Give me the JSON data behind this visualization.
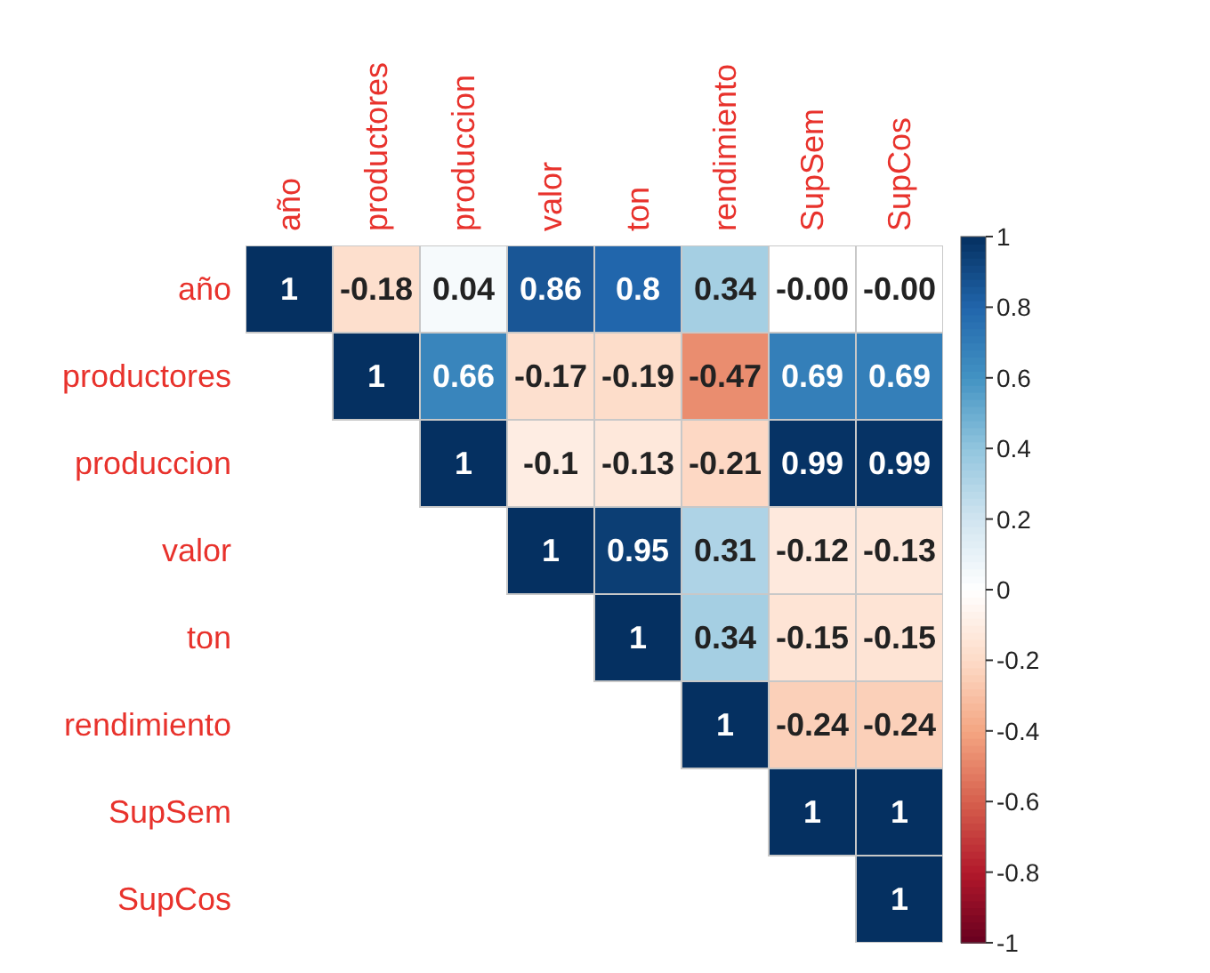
{
  "chart_data": {
    "type": "heatmap",
    "categories": [
      "año",
      "productores",
      "produccion",
      "valor",
      "ton",
      "rendimiento",
      "SupSem",
      "SupCos"
    ],
    "y_categories": [
      "año",
      "productores",
      "produccion",
      "valor",
      "ton",
      "rendimiento",
      "SupSem",
      "SupCos"
    ],
    "cells": [
      [
        1,
        -0.18,
        0.04,
        0.86,
        0.8,
        0.34,
        0,
        0
      ],
      [
        null,
        1,
        0.66,
        -0.17,
        -0.19,
        -0.47,
        0.69,
        0.69
      ],
      [
        null,
        null,
        1,
        -0.1,
        -0.13,
        -0.21,
        0.99,
        0.99
      ],
      [
        null,
        null,
        null,
        1,
        0.95,
        0.31,
        -0.12,
        -0.13
      ],
      [
        null,
        null,
        null,
        null,
        1,
        0.34,
        -0.15,
        -0.15
      ],
      [
        null,
        null,
        null,
        null,
        null,
        1,
        -0.24,
        -0.24
      ],
      [
        null,
        null,
        null,
        null,
        null,
        null,
        1,
        1
      ],
      [
        null,
        null,
        null,
        null,
        null,
        null,
        null,
        1
      ]
    ],
    "cell_labels": [
      [
        "1",
        "-0.18",
        "0.04",
        "0.86",
        "0.8",
        "0.34",
        "-0.00",
        "-0.00"
      ],
      [
        null,
        "1",
        "0.66",
        "-0.17",
        "-0.19",
        "-0.47",
        "0.69",
        "0.69"
      ],
      [
        null,
        null,
        "1",
        "-0.1",
        "-0.13",
        "-0.21",
        "0.99",
        "0.99"
      ],
      [
        null,
        null,
        null,
        "1",
        "0.95",
        "0.31",
        "-0.12",
        "-0.13"
      ],
      [
        null,
        null,
        null,
        null,
        "1",
        "0.34",
        "-0.15",
        "-0.15"
      ],
      [
        null,
        null,
        null,
        null,
        null,
        "1",
        "-0.24",
        "-0.24"
      ],
      [
        null,
        null,
        null,
        null,
        null,
        null,
        "1",
        "1"
      ],
      [
        null,
        null,
        null,
        null,
        null,
        null,
        null,
        "1"
      ]
    ],
    "clim": [
      -1,
      1
    ],
    "cticks": [
      {
        "value": -1,
        "label": "-1"
      },
      {
        "value": -0.8,
        "label": "-0.8"
      },
      {
        "value": -0.6,
        "label": "-0.6"
      },
      {
        "value": -0.4,
        "label": "-0.4"
      },
      {
        "value": -0.2,
        "label": "-0.2"
      },
      {
        "value": 0,
        "label": "0"
      },
      {
        "value": 0.2,
        "label": "0.2"
      },
      {
        "value": 0.4,
        "label": "0.4"
      },
      {
        "value": 0.6,
        "label": "0.6"
      },
      {
        "value": 0.8,
        "label": "0.8"
      },
      {
        "value": 1,
        "label": "1"
      }
    ]
  }
}
